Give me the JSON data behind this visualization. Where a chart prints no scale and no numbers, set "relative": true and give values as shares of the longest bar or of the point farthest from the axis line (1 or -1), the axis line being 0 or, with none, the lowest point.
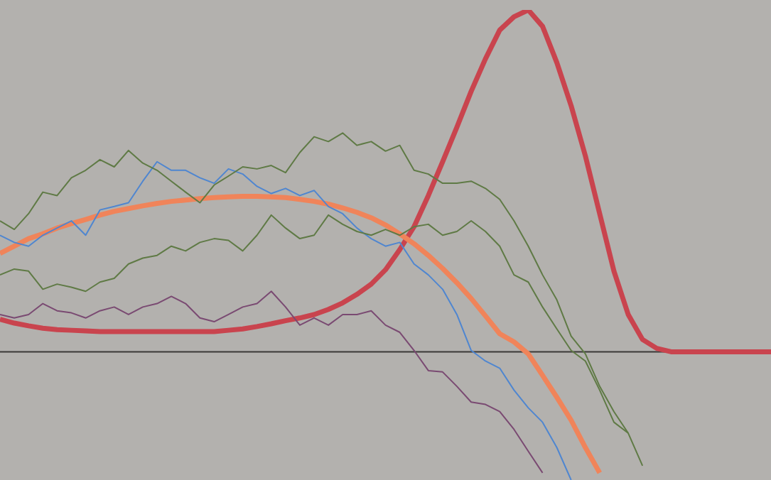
{
  "chart_data": {
    "type": "line",
    "relative": true,
    "categories": [
      null,
      null,
      null,
      null,
      null,
      null,
      null,
      null,
      null,
      null,
      null,
      null,
      null,
      null,
      null,
      null,
      null,
      null,
      null,
      null,
      null,
      null,
      null,
      null,
      null,
      null,
      null,
      null,
      null,
      null,
      null,
      null,
      null,
      null,
      null,
      null,
      null,
      null,
      null,
      null,
      null,
      null,
      null,
      null,
      null,
      null,
      null,
      null,
      null,
      null,
      null,
      null,
      null,
      null,
      null
    ],
    "series": [
      {
        "color": "#5f7a45",
        "values": [
          0.383,
          0.358,
          0.404,
          0.467,
          0.457,
          0.509,
          0.531,
          0.562,
          0.541,
          0.589,
          0.552,
          0.531,
          0.499,
          0.467,
          0.436,
          0.488,
          0.514,
          0.541,
          0.535,
          0.545,
          0.524,
          0.583,
          0.629,
          0.615,
          0.64,
          0.604,
          0.615,
          0.587,
          0.604,
          0.531,
          0.52,
          0.493,
          0.493,
          0.499,
          0.478,
          0.446,
          0.383,
          0.309,
          0.225,
          0.152,
          0.046,
          -0.006,
          -0.101,
          -0.175,
          -0.238,
          -0.333,
          null,
          null,
          null,
          null,
          null,
          null,
          null,
          null,
          null
        ]
      },
      {
        "color": "#5f7a45",
        "values": [
          0.225,
          0.242,
          0.236,
          0.183,
          0.198,
          0.189,
          0.177,
          0.204,
          0.215,
          0.257,
          0.274,
          0.282,
          0.309,
          0.295,
          0.32,
          0.331,
          0.326,
          0.295,
          0.341,
          0.4,
          0.362,
          0.331,
          0.341,
          0.4,
          0.373,
          0.352,
          0.341,
          0.358,
          0.341,
          0.366,
          0.373,
          0.341,
          0.352,
          0.383,
          0.352,
          0.309,
          0.225,
          0.204,
          0.131,
          0.067,
          0.004,
          -0.027,
          -0.112,
          -0.206,
          -0.238,
          null,
          null,
          null,
          null,
          null,
          null,
          null,
          null,
          null,
          null
        ]
      },
      {
        "color": "#7a4a72",
        "values": [
          0.109,
          0.099,
          0.109,
          0.141,
          0.12,
          0.114,
          0.099,
          0.12,
          0.131,
          0.109,
          0.131,
          0.141,
          0.162,
          0.141,
          0.099,
          0.088,
          0.109,
          0.131,
          0.141,
          0.177,
          0.131,
          0.078,
          0.099,
          0.078,
          0.109,
          0.109,
          0.12,
          0.078,
          0.057,
          0.004,
          -0.055,
          -0.059,
          -0.101,
          -0.147,
          -0.154,
          -0.175,
          -0.227,
          -0.291,
          -0.354,
          null,
          null,
          null,
          null,
          null,
          null,
          null,
          null,
          null,
          null,
          null,
          null,
          null,
          null,
          null,
          null
        ]
      },
      {
        "color": "#4f86d0",
        "values": [
          0.341,
          0.32,
          0.309,
          0.341,
          0.362,
          0.383,
          0.341,
          0.415,
          0.425,
          0.436,
          0.499,
          0.556,
          0.531,
          0.531,
          0.509,
          0.493,
          0.535,
          0.52,
          0.484,
          0.463,
          0.478,
          0.457,
          0.472,
          0.425,
          0.404,
          0.362,
          0.331,
          0.309,
          0.32,
          0.257,
          0.225,
          0.183,
          0.109,
          0.004,
          -0.027,
          -0.048,
          -0.112,
          -0.164,
          -0.206,
          -0.28,
          -0.375,
          null,
          null,
          null,
          null,
          null,
          null,
          null,
          null,
          null,
          null,
          null,
          null,
          null,
          null
        ]
      },
      {
        "color": "#f0845a",
        "values": [
          0.288,
          0.309,
          0.331,
          0.345,
          0.362,
          0.375,
          0.387,
          0.4,
          0.411,
          0.419,
          0.427,
          0.434,
          0.44,
          0.444,
          0.448,
          0.451,
          0.453,
          0.455,
          0.455,
          0.453,
          0.451,
          0.446,
          0.44,
          0.432,
          0.421,
          0.408,
          0.392,
          0.371,
          0.345,
          0.316,
          0.282,
          0.244,
          0.202,
          0.156,
          0.105,
          0.053,
          0.029,
          -0.006,
          -0.069,
          -0.133,
          -0.2,
          -0.28,
          -0.354,
          null,
          null,
          null,
          null,
          null,
          null,
          null,
          null,
          null,
          null,
          null,
          null
        ]
      },
      {
        "color": "#c9444e",
        "values": [
          0.095,
          0.084,
          0.076,
          0.069,
          0.065,
          0.063,
          0.061,
          0.059,
          0.059,
          0.059,
          0.059,
          0.059,
          0.059,
          0.059,
          0.059,
          0.059,
          0.063,
          0.067,
          0.074,
          0.082,
          0.091,
          0.099,
          0.109,
          0.124,
          0.143,
          0.168,
          0.198,
          0.24,
          0.299,
          0.366,
          0.457,
          0.556,
          0.657,
          0.762,
          0.857,
          0.941,
          0.98,
          1,
          0.952,
          0.846,
          0.72,
          0.573,
          0.404,
          0.236,
          0.109,
          0.036,
          0.01,
          0,
          0,
          0,
          0,
          0,
          0,
          0,
          0
        ]
      }
    ]
  }
}
